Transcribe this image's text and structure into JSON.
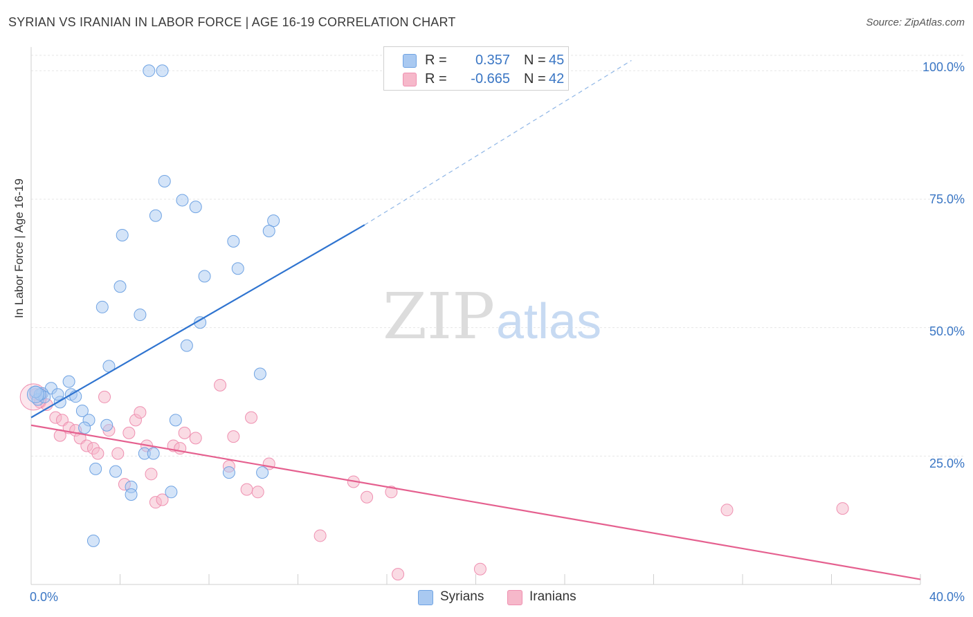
{
  "title": "SYRIAN VS IRANIAN IN LABOR FORCE | AGE 16-19 CORRELATION CHART",
  "source": "Source: ZipAtlas.com",
  "watermark": {
    "zip": "ZIP",
    "atlas": "atlas"
  },
  "legend": {
    "syrians": {
      "r_label": "R =",
      "r_value": "0.357",
      "n_label": "N =",
      "n_value": "45",
      "color": "#a9c9f1"
    },
    "iranians": {
      "r_label": "R =",
      "r_value": "-0.665",
      "n_label": "N =",
      "n_value": "42",
      "color": "#f6b8ca"
    }
  },
  "chart_data": {
    "type": "scatter",
    "title": "SYRIAN VS IRANIAN IN LABOR FORCE | AGE 16-19 CORRELATION CHART",
    "xlabel": "",
    "ylabel": "In Labor Force | Age 16-19",
    "xlim": [
      0,
      40
    ],
    "ylim": [
      0,
      103
    ],
    "x_ticks": [
      "0.0%",
      "40.0%"
    ],
    "y_ticks": [
      "25.0%",
      "50.0%",
      "75.0%",
      "100.0%"
    ],
    "y_tick_values": [
      25,
      50,
      75,
      100
    ],
    "grid": true,
    "legend_placement": "top-center",
    "series": [
      {
        "name": "Syrians",
        "color": "#6fa3e3",
        "fill": "#a9c9f1",
        "line_color": "#2f74d0",
        "trend": {
          "x1": 0,
          "y1": 32.5,
          "x2": 15,
          "y2": 70,
          "dash_x2": 27,
          "dash_y2": 102
        },
        "points": [
          [
            5.3,
            100
          ],
          [
            5.9,
            100
          ],
          [
            6.0,
            78.5
          ],
          [
            6.8,
            74.8
          ],
          [
            7.4,
            73.5
          ],
          [
            5.6,
            71.8
          ],
          [
            10.9,
            70.8
          ],
          [
            10.7,
            68.8
          ],
          [
            4.1,
            68.0
          ],
          [
            9.1,
            66.8
          ],
          [
            9.3,
            61.5
          ],
          [
            7.8,
            60.0
          ],
          [
            4.0,
            58.0
          ],
          [
            3.2,
            54.0
          ],
          [
            4.9,
            52.5
          ],
          [
            7.6,
            51.0
          ],
          [
            7.0,
            46.5
          ],
          [
            3.5,
            42.5
          ],
          [
            10.3,
            41.0
          ],
          [
            1.7,
            39.5
          ],
          [
            1.8,
            37.0
          ],
          [
            1.3,
            35.5
          ],
          [
            0.9,
            38.2
          ],
          [
            0.5,
            37.2
          ],
          [
            0.3,
            36.0
          ],
          [
            0.6,
            36.5
          ],
          [
            2.0,
            36.6
          ],
          [
            2.3,
            33.8
          ],
          [
            2.6,
            32.0
          ],
          [
            2.4,
            30.5
          ],
          [
            3.4,
            31.0
          ],
          [
            6.5,
            32.0
          ],
          [
            5.1,
            25.5
          ],
          [
            5.5,
            25.5
          ],
          [
            2.9,
            22.5
          ],
          [
            3.8,
            22.0
          ],
          [
            8.9,
            21.8
          ],
          [
            10.4,
            21.8
          ],
          [
            4.5,
            19.0
          ],
          [
            4.5,
            17.5
          ],
          [
            6.3,
            18.0
          ],
          [
            2.8,
            8.5
          ],
          [
            0.4,
            37.0
          ],
          [
            0.2,
            37.5
          ],
          [
            1.2,
            37.0
          ]
        ]
      },
      {
        "name": "Iranians",
        "color": "#ef8fb0",
        "fill": "#f6b8ca",
        "line_color": "#e5608f",
        "trend": {
          "x1": 0,
          "y1": 31,
          "x2": 40,
          "y2": 1
        },
        "points": [
          [
            0.2,
            37.0
          ],
          [
            0.4,
            35.5
          ],
          [
            0.7,
            35.0
          ],
          [
            1.1,
            32.5
          ],
          [
            1.4,
            32.0
          ],
          [
            1.3,
            29.0
          ],
          [
            1.7,
            30.5
          ],
          [
            2.0,
            30.0
          ],
          [
            2.2,
            28.5
          ],
          [
            2.5,
            27.0
          ],
          [
            2.8,
            26.5
          ],
          [
            3.0,
            25.5
          ],
          [
            3.3,
            36.5
          ],
          [
            3.5,
            30.0
          ],
          [
            3.9,
            25.5
          ],
          [
            4.4,
            29.5
          ],
          [
            4.7,
            32.0
          ],
          [
            4.9,
            33.5
          ],
          [
            5.2,
            27.0
          ],
          [
            5.4,
            21.5
          ],
          [
            5.6,
            16.0
          ],
          [
            5.9,
            16.5
          ],
          [
            6.4,
            27.0
          ],
          [
            6.7,
            26.5
          ],
          [
            6.9,
            29.5
          ],
          [
            7.4,
            28.5
          ],
          [
            4.2,
            19.5
          ],
          [
            8.5,
            38.8
          ],
          [
            8.9,
            23.0
          ],
          [
            9.1,
            28.8
          ],
          [
            9.9,
            32.5
          ],
          [
            9.7,
            18.5
          ],
          [
            10.2,
            18.0
          ],
          [
            10.7,
            23.5
          ],
          [
            14.5,
            20.0
          ],
          [
            15.1,
            17.0
          ],
          [
            16.2,
            18.0
          ],
          [
            13.0,
            9.5
          ],
          [
            16.5,
            2.0
          ],
          [
            20.2,
            3.0
          ],
          [
            31.3,
            14.5
          ],
          [
            36.5,
            14.8
          ]
        ]
      }
    ]
  }
}
